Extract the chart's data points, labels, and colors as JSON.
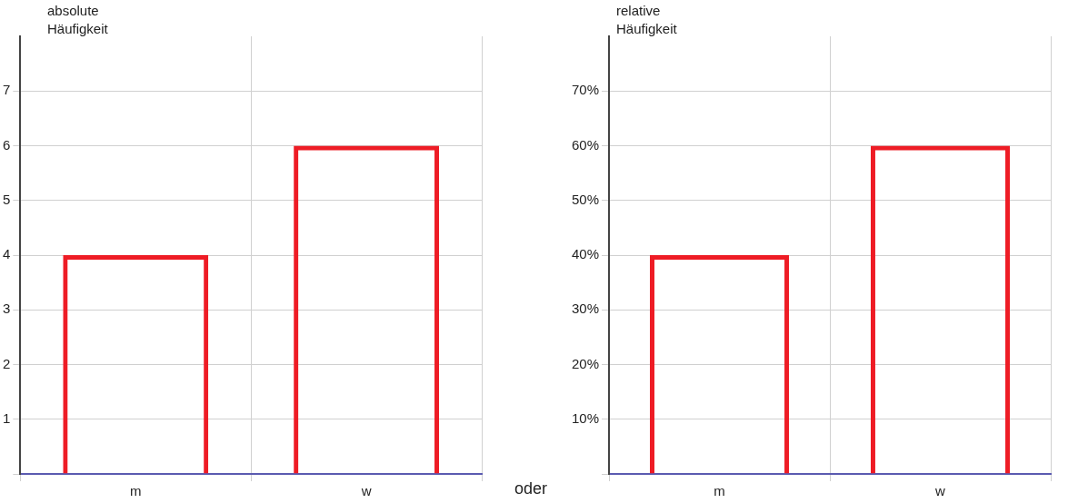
{
  "chart_data": [
    {
      "type": "bar",
      "ylabel": "absolute Häufigkeit",
      "categories": [
        "m",
        "w"
      ],
      "values": [
        4,
        6
      ],
      "color": "#ee1c25",
      "ylim": [
        0,
        8
      ],
      "yticks": [
        {
          "value": 0,
          "label": null
        },
        1,
        2,
        3,
        4,
        5,
        6,
        7
      ],
      "grid": true,
      "annotations": [
        "oder"
      ]
    },
    {
      "type": "bar",
      "ylabel": "relative Häufigkeit",
      "categories": [
        "m",
        "w"
      ],
      "values": [
        40,
        60
      ],
      "color": "#ee1c25",
      "ylim": [
        0,
        80
      ],
      "yticks": [
        {
          "value": 0,
          "label": null
        },
        {
          "value": 10,
          "label": "10%"
        },
        {
          "value": 20,
          "label": "20%"
        },
        {
          "value": 30,
          "label": "30%"
        },
        {
          "value": 40,
          "label": "40%"
        },
        {
          "value": 50,
          "label": "50%"
        },
        {
          "value": 60,
          "label": "60%"
        },
        {
          "value": 70,
          "label": "70%"
        }
      ],
      "grid": true
    }
  ]
}
